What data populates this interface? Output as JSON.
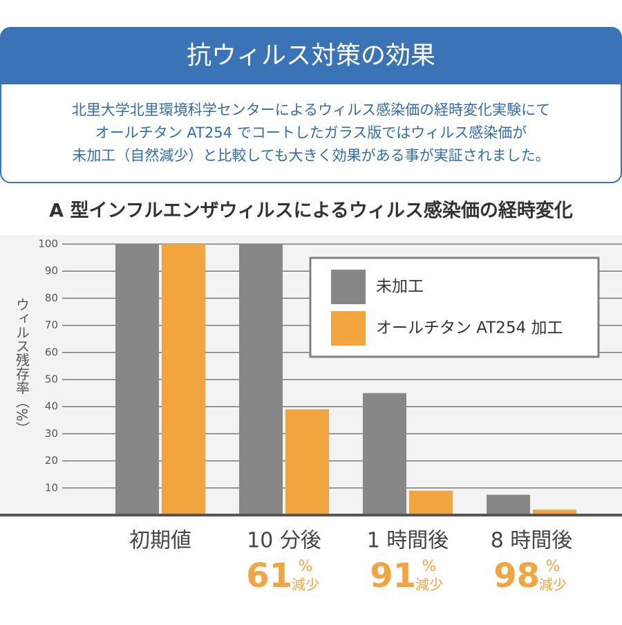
{
  "header": {
    "title": "抗ウィルス対策の効果",
    "lines": [
      "北里大学北里環境科学センターによるウィルス感染価の経時変化実験にて",
      "オールチタン AT254 でコートしたガラス版ではウィルス感染価が",
      "未加工（自然減少）と比較しても大きく効果がある事が実証されました。"
    ]
  },
  "chart_data": {
    "type": "bar",
    "title": "A 型インフルエンザウィルスによるウィルス感染価の経時変化",
    "y_label": "ウィルス残存率（%）",
    "categories": [
      "初期値",
      "10 分後",
      "1 時間後",
      "8 時間後"
    ],
    "series": [
      {
        "name": "未加工",
        "color": "#878787",
        "values": [
          100,
          100,
          45,
          7.5
        ]
      },
      {
        "name": "オールチタン AT254 加工",
        "color": "#f2a53f",
        "values": [
          100,
          39,
          9,
          2
        ]
      }
    ],
    "reductions": [
      null,
      {
        "value": 61,
        "unit": "%",
        "note": "減少"
      },
      {
        "value": 91,
        "unit": "%",
        "note": "減少"
      },
      {
        "value": 98,
        "unit": "%",
        "note": "減少"
      }
    ],
    "ylim": [
      0,
      100
    ],
    "yticks": [
      10,
      20,
      30,
      40,
      50,
      60,
      70,
      80,
      90,
      100
    ],
    "grid": true,
    "legend": "top-right"
  }
}
